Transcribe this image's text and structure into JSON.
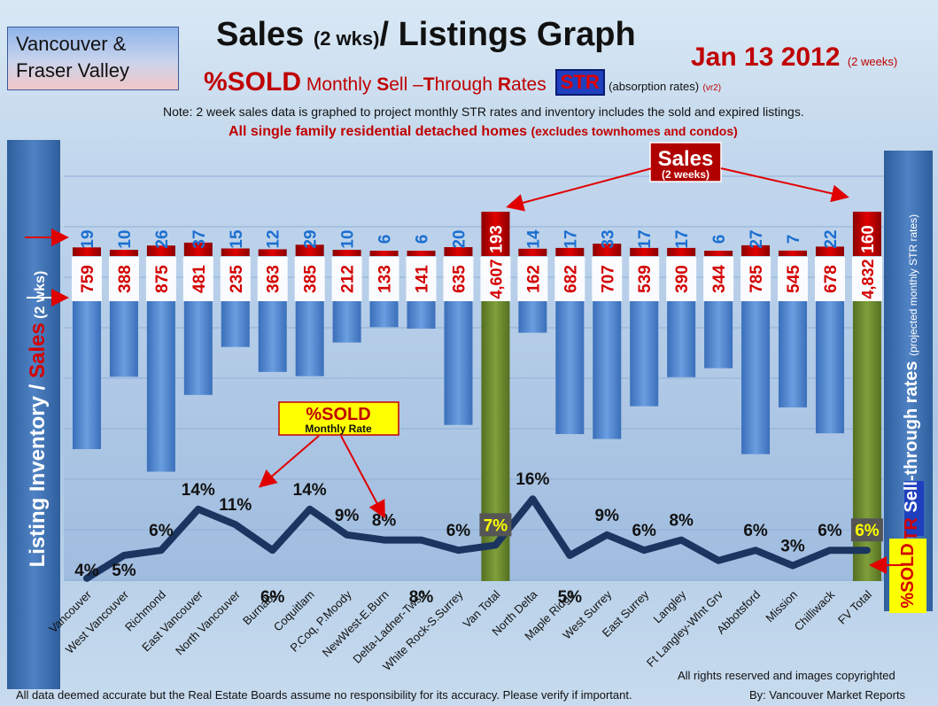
{
  "region": {
    "line1": "Vancouver &",
    "line2": "Fraser Valley"
  },
  "title": {
    "main": "Sales ",
    "paren": "(2 wks)",
    "rest": "/ Listings Graph"
  },
  "date": {
    "main": "Jan 13 2012 ",
    "note": "(2 weeks)"
  },
  "subtitle": {
    "pct": "%SOLD",
    "monthly": " Monthly ",
    "S": "S",
    "ell": "ell ",
    "dash": "–",
    "T": "T",
    "hrough": "hrough ",
    "R": "R",
    "ates": "ates",
    "str": "STR",
    "absorption": "(absorption rates)",
    "vr": "(vr2)"
  },
  "note": "Note: 2 week sales data is graphed to project monthly STR rates and inventory includes the sold and expired listings.",
  "detached": {
    "main": "All single family residential detached homes ",
    "paren": "(excludes townhomes and condos)"
  },
  "left_axis": {
    "inventory": "Listing Inventory / ",
    "sales": "Sales",
    "wks": " (2 wks)"
  },
  "right_axis": {
    "str": "STR",
    "text": " Sell-through rates ",
    "small": "(projected monthly STR rates)"
  },
  "sold_label": "%SOLD",
  "callouts": {
    "sales_main": "Sales",
    "sales_sub": "(2 weeks)",
    "sold_main": "%SOLD",
    "sold_sub": "Monthly Rate"
  },
  "colors": {
    "sales_bar": "#c00000",
    "inventory_bar": "#4f86d0",
    "total_bar": "#6e8f2e",
    "line_dark": "#1a3560",
    "line_peak": "#c0183c",
    "label_red": "#d40000",
    "label_blue": "#1c6fd0"
  },
  "chart_data": {
    "type": "bar",
    "categories": [
      "Vancouver",
      "West Vancouver",
      "Richmond",
      "East Vancouver",
      "North Vancouver",
      "Burnaby",
      "Coquitlam",
      "P.Coq, P.Moody",
      "NewWest-E.Burn",
      "Delta-Ladner-Twsn",
      "White Rock-S.Surrey",
      "Van Total",
      "North Delta",
      "Maple Ridge",
      "West Surrey",
      "East Surrey",
      "Langley",
      "Ft Langley-Wlnt Grv",
      "Abbotsford",
      "Mission",
      "Chilliwack",
      "FV Total"
    ],
    "series": [
      {
        "name": "Sales",
        "values": [
          19,
          10,
          26,
          37,
          15,
          12,
          29,
          10,
          6,
          6,
          20,
          193,
          14,
          17,
          33,
          17,
          17,
          6,
          27,
          7,
          22,
          160
        ]
      },
      {
        "name": "Listing Inventory",
        "values": [
          759,
          388,
          875,
          481,
          235,
          363,
          385,
          212,
          133,
          141,
          635,
          4607,
          162,
          682,
          707,
          539,
          390,
          344,
          785,
          545,
          678,
          4832
        ]
      },
      {
        "name": "%SOLD Monthly Rate",
        "values": [
          4,
          5,
          6,
          14,
          11,
          6,
          14,
          9,
          8,
          8,
          6,
          7,
          16,
          5,
          9,
          6,
          8,
          4,
          6,
          3,
          6,
          6
        ]
      }
    ],
    "pct_labels": [
      "4%",
      "5%",
      "6%",
      "14%",
      "11%",
      "6%",
      "14%",
      "9%",
      "8%",
      "8%",
      "6%",
      "7%",
      "16%",
      "5%",
      "9%",
      "6%",
      "8%",
      "",
      "6%",
      "3%",
      "6%",
      "6%"
    ],
    "sales_labels": [
      "19",
      "10",
      "26",
      "37",
      "15",
      "12",
      "29",
      "10",
      "6",
      "6",
      "20",
      "193",
      "14",
      "17",
      "33",
      "17",
      "17",
      "6",
      "27",
      "7",
      "22",
      "160"
    ],
    "inventory_labels": [
      "759",
      "388",
      "875",
      "481",
      "235",
      "363",
      "385",
      "212",
      "133",
      "141",
      "635",
      "4,607",
      "162",
      "682",
      "707",
      "539",
      "390",
      "344",
      "785",
      "545",
      "678",
      "4,832"
    ],
    "xlabel": "",
    "ylabel": "Listing Inventory / Sales (2 wks)",
    "y2label": "STR Sell-through rates (projected monthly STR rates)"
  },
  "footer": {
    "copyright": "All rights reserved and  images copyrighted",
    "disclaimer": "All data deemed accurate but the Real Estate Boards assume no responsibility for its accuracy.  Please verify if important.",
    "byline": "By: Vancouver Market Reports"
  }
}
